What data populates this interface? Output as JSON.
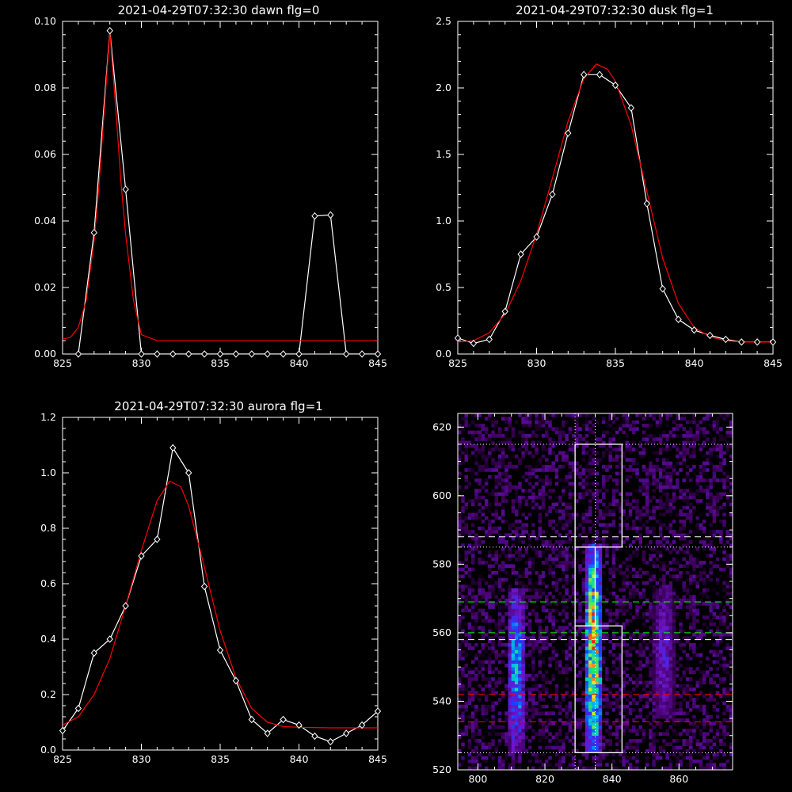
{
  "chart_data": [
    {
      "type": "line",
      "title": "2021-04-29T07:32:30 dawn flg=0",
      "xlim": [
        825,
        845
      ],
      "ylim": [
        0,
        0.1
      ],
      "xticks": [
        "825",
        "830",
        "835",
        "840",
        "845"
      ],
      "yticks": [
        "0.00",
        "0.02",
        "0.04",
        "0.06",
        "0.08",
        "0.10"
      ],
      "series": [
        {
          "color": "#ffffff",
          "markers": "diamond",
          "x": [
            826,
            827,
            828,
            829,
            830,
            831,
            832,
            833,
            834,
            835,
            836,
            837,
            838,
            839,
            840,
            841,
            842,
            843,
            844,
            845
          ],
          "y": [
            0,
            0.0365,
            0.0972,
            0.0495,
            0,
            0,
            0,
            0,
            0,
            0,
            0,
            0,
            0,
            0,
            0,
            0.0415,
            0.0418,
            0,
            0,
            0
          ]
        },
        {
          "color": "#ff0000",
          "x": [
            825,
            825.5,
            826,
            826.5,
            827,
            827.3,
            827.6,
            828,
            828.4,
            828.7,
            829,
            829.5,
            830,
            831,
            835,
            840,
            845
          ],
          "y": [
            0.0045,
            0.005,
            0.008,
            0.016,
            0.034,
            0.05,
            0.07,
            0.0968,
            0.072,
            0.052,
            0.036,
            0.016,
            0.0058,
            0.004,
            0.004,
            0.004,
            0.004
          ]
        }
      ]
    },
    {
      "type": "line",
      "title": "2021-04-29T07:32:30 dusk flg=1",
      "xlim": [
        825,
        845
      ],
      "ylim": [
        0,
        2.5
      ],
      "xticks": [
        "825",
        "830",
        "835",
        "840",
        "845"
      ],
      "yticks": [
        "0.0",
        "0.5",
        "1.0",
        "1.5",
        "2.0",
        "2.5"
      ],
      "series": [
        {
          "color": "#ffffff",
          "markers": "diamond",
          "x": [
            825,
            826,
            827,
            828,
            829,
            830,
            831,
            832,
            833,
            834,
            835,
            836,
            837,
            838,
            839,
            840,
            841,
            842,
            843,
            844,
            845
          ],
          "y": [
            0.12,
            0.08,
            0.11,
            0.32,
            0.75,
            0.88,
            1.2,
            1.66,
            2.1,
            2.1,
            2.02,
            1.85,
            1.13,
            0.49,
            0.26,
            0.18,
            0.14,
            0.11,
            0.09,
            0.09,
            0.09
          ]
        },
        {
          "color": "#ff0000",
          "x": [
            825,
            826,
            827,
            828,
            829,
            830,
            831,
            832,
            833,
            833.8,
            834.5,
            835,
            836,
            837,
            838,
            839,
            840,
            841,
            842,
            843,
            844,
            845
          ],
          "y": [
            0.09,
            0.1,
            0.16,
            0.3,
            0.55,
            0.9,
            1.32,
            1.75,
            2.07,
            2.18,
            2.14,
            2.05,
            1.72,
            1.22,
            0.72,
            0.38,
            0.2,
            0.13,
            0.1,
            0.09,
            0.09,
            0.09
          ]
        }
      ]
    },
    {
      "type": "line",
      "title": "2021-04-29T07:32:30 aurora flg=1",
      "xlim": [
        825,
        845
      ],
      "ylim": [
        0,
        1.2
      ],
      "xticks": [
        "825",
        "830",
        "835",
        "840",
        "845"
      ],
      "yticks": [
        "0.0",
        "0.2",
        "0.4",
        "0.6",
        "0.8",
        "1.0",
        "1.2"
      ],
      "series": [
        {
          "color": "#ffffff",
          "markers": "diamond",
          "x": [
            825,
            826,
            827,
            828,
            829,
            830,
            831,
            832,
            833,
            834,
            835,
            836,
            837,
            838,
            839,
            840,
            841,
            842,
            843,
            844,
            845
          ],
          "y": [
            0.07,
            0.15,
            0.35,
            0.4,
            0.52,
            0.7,
            0.76,
            1.09,
            1.0,
            0.59,
            0.36,
            0.25,
            0.11,
            0.06,
            0.11,
            0.09,
            0.05,
            0.03,
            0.06,
            0.09,
            0.14
          ]
        },
        {
          "color": "#ff0000",
          "x": [
            825,
            826,
            827,
            828,
            829,
            830,
            831,
            831.8,
            832.5,
            833,
            834,
            835,
            836,
            837,
            838,
            839,
            840,
            842,
            845
          ],
          "y": [
            0.09,
            0.12,
            0.2,
            0.33,
            0.52,
            0.72,
            0.9,
            0.97,
            0.95,
            0.88,
            0.66,
            0.43,
            0.26,
            0.15,
            0.1,
            0.085,
            0.082,
            0.08,
            0.08
          ]
        }
      ]
    },
    {
      "type": "heatmap",
      "title": "",
      "xlim": [
        794,
        876
      ],
      "ylim": [
        520,
        624
      ],
      "xticks": [
        "800",
        "820",
        "840",
        "860"
      ],
      "yticks": [
        "520",
        "540",
        "560",
        "580",
        "600",
        "620"
      ],
      "bright_bands": [
        {
          "x": 811,
          "width": 5,
          "ylo": 525,
          "yhi": 572,
          "intensity": 0.6
        },
        {
          "x": 834,
          "width": 5,
          "ylo": 525,
          "yhi": 585,
          "intensity": 0.95
        },
        {
          "x": 855,
          "width": 6,
          "ylo": 535,
          "yhi": 572,
          "intensity": 0.35
        }
      ],
      "boxes": [
        {
          "x0": 829,
          "x1": 843,
          "y0": 585,
          "y1": 615
        },
        {
          "x0": 829,
          "x1": 835,
          "y0": 562,
          "y1": 585
        },
        {
          "x0": 829,
          "x1": 843,
          "y0": 525,
          "y1": 562
        }
      ],
      "hlines": [
        {
          "y": 615,
          "color": "#ffffff",
          "style": "dotted"
        },
        {
          "y": 588,
          "color": "#ffffff",
          "style": "dashed"
        },
        {
          "y": 585,
          "color": "#ffffff",
          "style": "dotted"
        },
        {
          "y": 569,
          "color": "#00ff00",
          "style": "dashed"
        },
        {
          "y": 560,
          "color": "#00ff00",
          "style": "dashed"
        },
        {
          "y": 558,
          "color": "#ffffff",
          "style": "dashed"
        },
        {
          "y": 542,
          "color": "#ff0000",
          "style": "dashed"
        },
        {
          "y": 534,
          "color": "#ff0000",
          "style": "dashed"
        },
        {
          "y": 525,
          "color": "#ffffff",
          "style": "dotted"
        }
      ],
      "vlines": [
        {
          "x": 829,
          "color": "#ffffff",
          "style": "dotted"
        },
        {
          "x": 835,
          "color": "#ffffff",
          "style": "dotted"
        }
      ]
    }
  ]
}
